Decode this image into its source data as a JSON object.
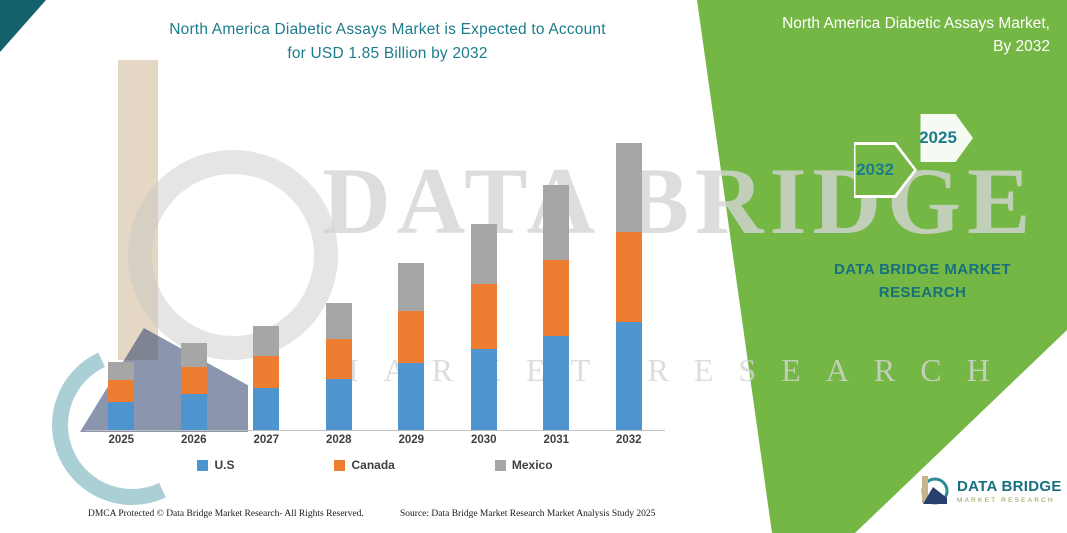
{
  "header": {
    "title_line1": "North America Diabetic Assays Market is Expected to Account",
    "title_line2": "for USD 1.85 Billion by 2032"
  },
  "side_panel": {
    "heading_line1": "North America Diabetic Assays Market,",
    "heading_line2": "By 2032",
    "hexagon_back_label": "2032",
    "hexagon_front_label": "2025",
    "brand_text": "DATA BRIDGE MARKET RESEARCH"
  },
  "watermark": {
    "line1": "DATA BRIDGE",
    "line2": "MARKET RESEARCH"
  },
  "chart_data": {
    "type": "bar",
    "stacked": true,
    "title": "North America Diabetic Assays Market is Expected to Account for USD 1.85 Billion by 2032",
    "categories": [
      "2025",
      "2026",
      "2027",
      "2028",
      "2029",
      "2030",
      "2031",
      "2032"
    ],
    "series": [
      {
        "name": "U.S",
        "color": "#4E95D0",
        "values": [
          0.18,
          0.23,
          0.27,
          0.33,
          0.43,
          0.52,
          0.61,
          0.7
        ]
      },
      {
        "name": "Canada",
        "color": "#ED7D31",
        "values": [
          0.14,
          0.18,
          0.21,
          0.26,
          0.34,
          0.42,
          0.49,
          0.58
        ]
      },
      {
        "name": "Mexico",
        "color": "#A6A6A6",
        "values": [
          0.12,
          0.15,
          0.19,
          0.23,
          0.31,
          0.39,
          0.48,
          0.57
        ]
      }
    ],
    "totals": [
      0.44,
      0.56,
      0.67,
      0.82,
      1.08,
      1.33,
      1.58,
      1.85
    ],
    "value_unit": "USD Billion (estimated from bar heights)",
    "ylim": [
      0,
      2
    ],
    "grid": false,
    "legend_position": "bottom",
    "xlabel": "",
    "ylabel": ""
  },
  "footer": {
    "left_text": "DMCA Protected © Data Bridge Market Research-  All Rights Reserved.",
    "source_text": "Source: Data Bridge Market Research  Market Analysis Study 2025"
  },
  "logo": {
    "name": "DATA BRIDGE",
    "tagline": "MARKET RESEARCH"
  },
  "colors": {
    "green_panel": "#74B745",
    "teal": "#1C7C8C",
    "corner_triangle": "#12616B"
  }
}
